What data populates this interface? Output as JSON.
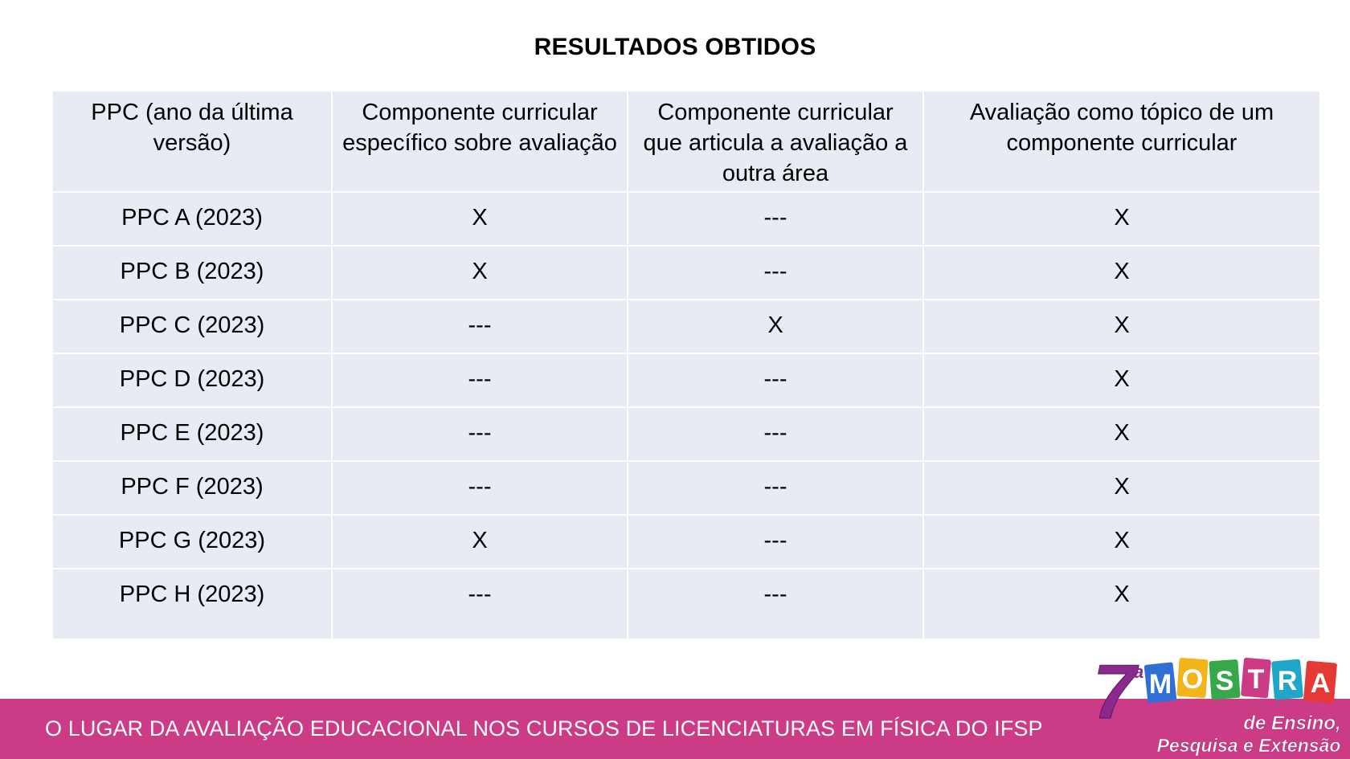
{
  "title": "RESULTADOS OBTIDOS",
  "table": {
    "headers": [
      "PPC (ano da última versão)",
      "Componente curricular específico sobre avaliação",
      "Componente curricular que articula a avaliação a outra área",
      "Avaliação como tópico de um componente curricular"
    ],
    "rows": [
      [
        "PPC A (2023)",
        "X",
        "---",
        "X"
      ],
      [
        "PPC B (2023)",
        "X",
        "---",
        "X"
      ],
      [
        "PPC C (2023)",
        "---",
        "X",
        "X"
      ],
      [
        "PPC D (2023)",
        "---",
        "---",
        "X"
      ],
      [
        "PPC E (2023)",
        "---",
        "---",
        "X"
      ],
      [
        "PPC F (2023)",
        "---",
        "---",
        "X"
      ],
      [
        "PPC G (2023)",
        "X",
        "---",
        "X"
      ],
      [
        "PPC H (2023)",
        "---",
        "---",
        "X"
      ]
    ]
  },
  "footer": {
    "text": "O LUGAR DA AVALIAÇÃO EDUCACIONAL NOS CURSOS DE LICENCIATURAS EM FÍSICA DO IFSP",
    "color": "#cc3b86"
  },
  "logo": {
    "number": "7",
    "superscript": "a",
    "letters": [
      "M",
      "O",
      "S",
      "T",
      "R",
      "A"
    ],
    "letter_colors": [
      "#2f6fd6",
      "#f2b419",
      "#35a84a",
      "#cc3b86",
      "#1fa6c9",
      "#e53935"
    ],
    "line1": "de Ensino,",
    "line2": "Pesquisa e Extensão"
  }
}
